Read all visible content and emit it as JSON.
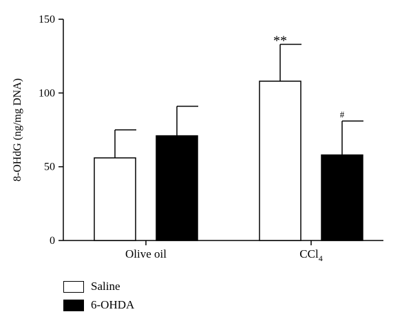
{
  "chart_data": {
    "type": "bar",
    "ylabel": "8-OHdG (ng/mg DNA)",
    "ylim": [
      0,
      150
    ],
    "yticks": [
      0,
      50,
      100,
      150
    ],
    "categories": [
      {
        "text": "Olive oil",
        "sub": ""
      },
      {
        "text": "CCl",
        "sub": "4"
      }
    ],
    "series": [
      {
        "name": "Saline",
        "color": "#ffffff",
        "values": [
          56,
          108
        ],
        "errors": [
          19,
          25
        ]
      },
      {
        "name": "6-OHDA",
        "color": "#000000",
        "values": [
          71,
          58
        ],
        "errors": [
          20,
          23
        ]
      }
    ],
    "annotations": [
      {
        "category": 1,
        "series": 0,
        "text": "**"
      },
      {
        "category": 1,
        "series": 1,
        "text": "#"
      }
    ],
    "grid": false,
    "legend_position": "bottom-left"
  }
}
